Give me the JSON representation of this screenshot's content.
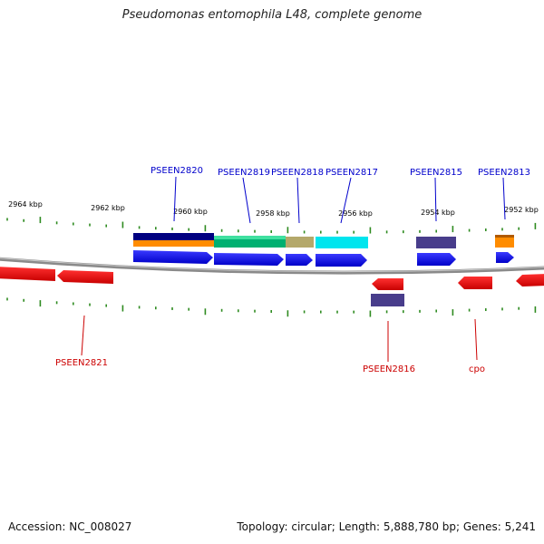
{
  "title": "Pseudomonas entomophila L48, complete genome",
  "footer": {
    "accession": "Accession: NC_008027",
    "summary": "Topology: circular; Length: 5,888,780 bp; Genes: 5,241"
  },
  "colors": {
    "forward_gene": "#0000ee",
    "reverse_gene": "#ee0000",
    "forward_label": "#0000cc",
    "reverse_label": "#cc0000",
    "tick": "#2e8b20",
    "backbone": "#888888",
    "kbp_label": "#000000"
  },
  "kbp_labels": [
    "2964 kbp",
    "2962 kbp",
    "2960 kbp",
    "2958 kbp",
    "2956 kbp",
    "2954 kbp",
    "2952 kbp"
  ],
  "forward_genes": [
    {
      "label": "PSEEN2820",
      "feature_colors": [
        "#000080",
        "#ff8c00"
      ]
    },
    {
      "label": "PSEEN2819",
      "feature_colors": [
        "#00b070"
      ]
    },
    {
      "label": "PSEEN2818",
      "feature_colors": [
        "#b4a86a"
      ]
    },
    {
      "label": "PSEEN2817",
      "feature_colors": [
        "#00e5ee"
      ]
    },
    {
      "label": "PSEEN2815",
      "feature_colors": [
        "#483d8b"
      ]
    },
    {
      "label": "PSEEN2813",
      "feature_colors": [
        "#ff8c00"
      ]
    }
  ],
  "reverse_genes": [
    {
      "label": "PSEEN2821"
    },
    {
      "label": "PSEEN2816",
      "feature_colors": [
        "#483d8b"
      ]
    },
    {
      "label": "cpo"
    }
  ]
}
